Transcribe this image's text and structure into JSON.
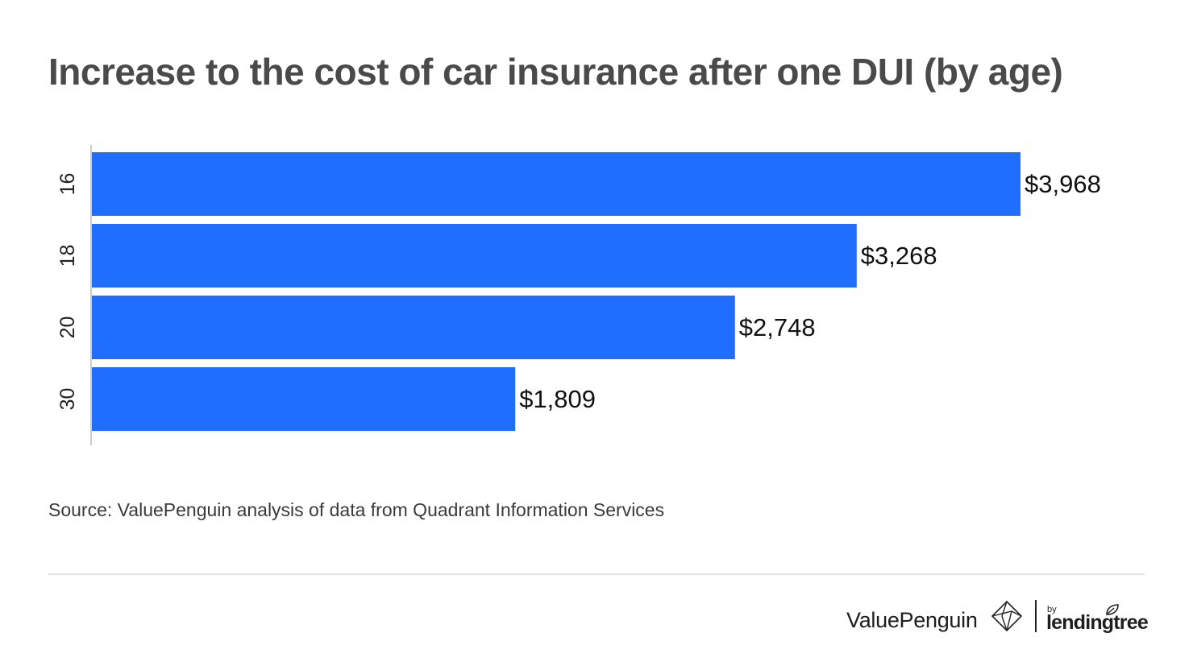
{
  "chart_data": {
    "type": "bar",
    "orientation": "horizontal",
    "title": "Increase to the cost of car insurance after one DUI (by age)",
    "categories": [
      "16",
      "18",
      "20",
      "30"
    ],
    "values": [
      3968,
      3268,
      2748,
      1809
    ],
    "value_labels": [
      "$3,968",
      "$3,268",
      "$2,748",
      "$1,809"
    ],
    "xlabel": "",
    "ylabel": "",
    "xlim": [
      0,
      4000
    ],
    "grid": false,
    "legend": "none",
    "colors": {
      "bar": "#1f6efe",
      "label": "#111111",
      "axis": "#cccccc",
      "tick": "#222222"
    }
  },
  "source": "Source: ValuePenguin analysis of data from Quadrant Information Services",
  "branding": {
    "primary": "ValuePenguin",
    "by": "by",
    "partner": "lendingtree",
    "primary_icon": "penguin-diamond-icon",
    "partner_icon": "leaf-icon"
  }
}
